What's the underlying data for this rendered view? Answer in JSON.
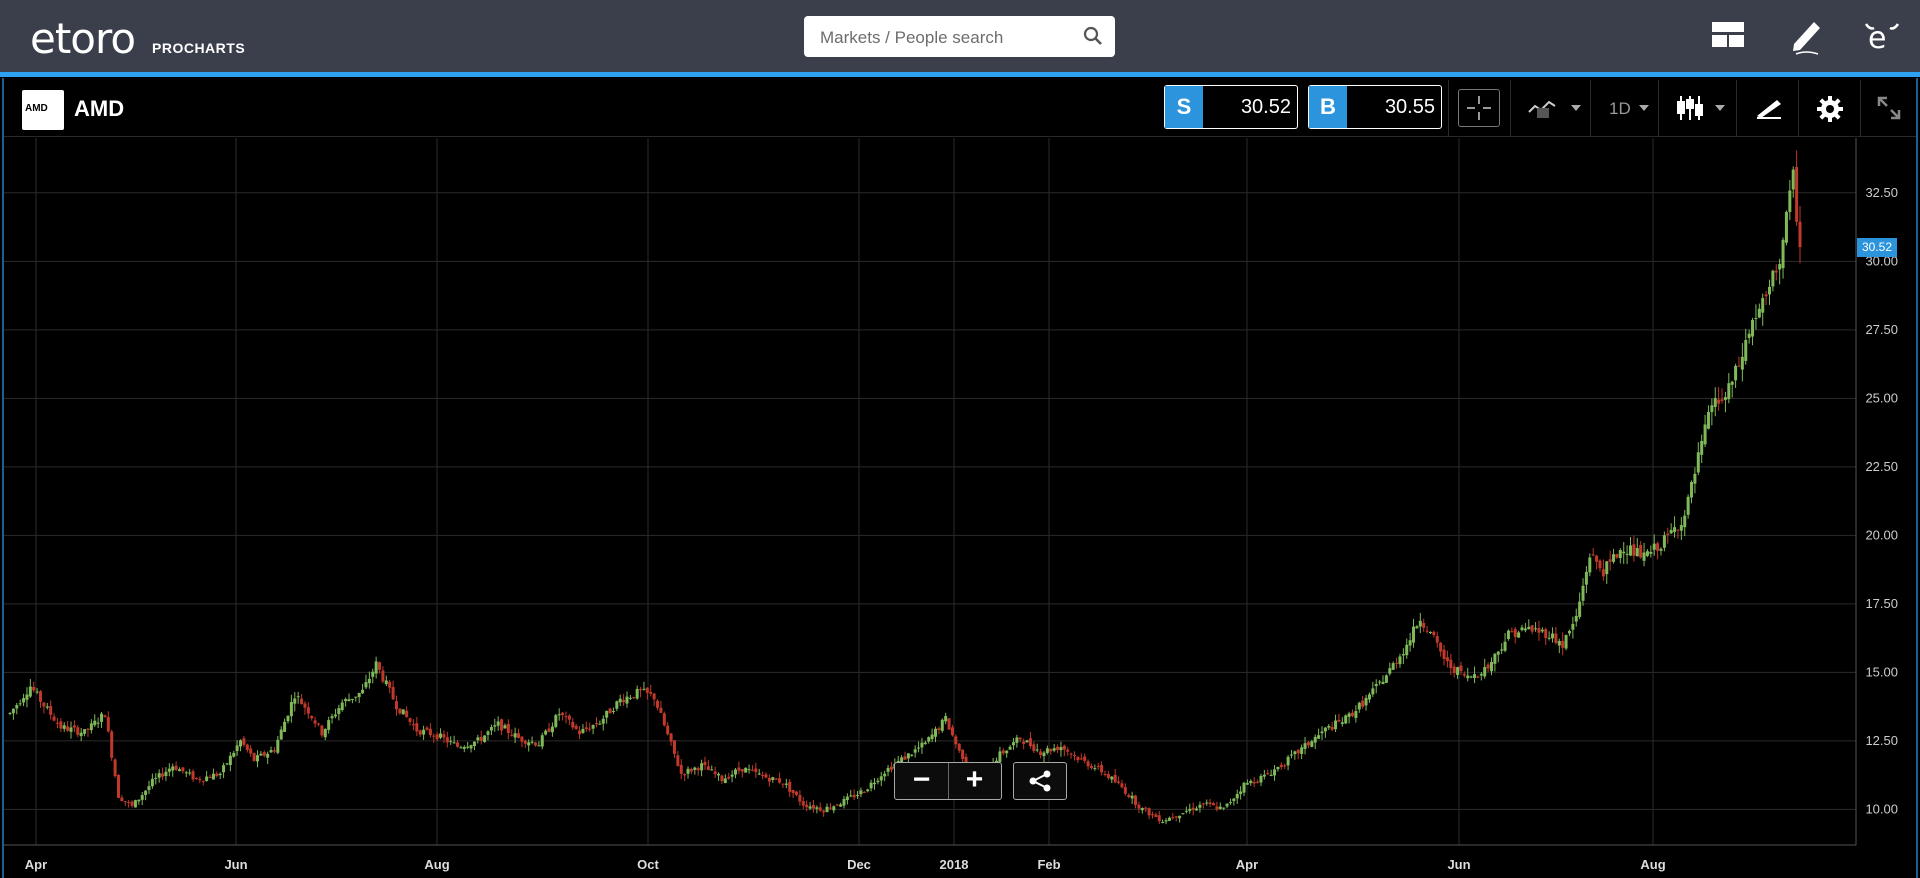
{
  "header": {
    "logo_text": "etoro",
    "logo_sub": "PROCHARTS",
    "search_placeholder": "Markets / People search",
    "icons": [
      "layout-icon",
      "edit-icon",
      "etoro-icon"
    ]
  },
  "instrument": {
    "logo_text": "AMD",
    "name": "AMD",
    "sell_tag": "S",
    "sell_price": "30.52",
    "buy_tag": "B",
    "buy_price": "30.55",
    "timeframe": "1D",
    "last_price_label": "30.52"
  },
  "toolbar": {
    "icons": [
      "crosshair-icon",
      "indicators-icon",
      "timeframe-dropdown",
      "candlestick-icon",
      "drawing-icon",
      "gear-icon",
      "fullscreen-icon"
    ]
  },
  "zoom": {
    "minus": "−",
    "plus": "+"
  },
  "colors": {
    "up": "#7fb95a",
    "down": "#c0392b",
    "accent": "#2b94dd",
    "topbar": "#3b3e4b"
  },
  "chart_data": {
    "type": "candlestick",
    "title": "",
    "y_ticks": [
      "32.50",
      "30.00",
      "27.50",
      "25.00",
      "22.50",
      "20.00",
      "17.50",
      "15.00",
      "12.50",
      "10.00"
    ],
    "x_ticks": [
      "Apr",
      "Jun",
      "Aug",
      "Oct",
      "Dec",
      "2018",
      "Feb",
      "Apr",
      "Jun",
      "Aug"
    ],
    "ylim": [
      8.7,
      34.5
    ],
    "last_price": 30.52,
    "grid": true,
    "approx_close_path": [
      [
        0,
        13.5
      ],
      [
        6,
        14.5
      ],
      [
        10,
        13.8
      ],
      [
        15,
        13.0
      ],
      [
        22,
        12.8
      ],
      [
        28,
        13.5
      ],
      [
        32,
        10.5
      ],
      [
        36,
        10.1
      ],
      [
        42,
        11.0
      ],
      [
        48,
        11.6
      ],
      [
        55,
        11.1
      ],
      [
        62,
        11.3
      ],
      [
        68,
        12.5
      ],
      [
        72,
        11.8
      ],
      [
        78,
        12.2
      ],
      [
        84,
        14.2
      ],
      [
        88,
        13.6
      ],
      [
        92,
        12.8
      ],
      [
        98,
        13.9
      ],
      [
        104,
        14.3
      ],
      [
        108,
        15.3
      ],
      [
        114,
        13.8
      ],
      [
        120,
        12.9
      ],
      [
        126,
        12.7
      ],
      [
        132,
        12.3
      ],
      [
        138,
        12.5
      ],
      [
        144,
        13.1
      ],
      [
        150,
        12.6
      ],
      [
        156,
        12.4
      ],
      [
        162,
        13.5
      ],
      [
        168,
        12.8
      ],
      [
        174,
        13.2
      ],
      [
        180,
        14.0
      ],
      [
        186,
        14.3
      ],
      [
        190,
        14.1
      ],
      [
        194,
        12.7
      ],
      [
        198,
        11.3
      ],
      [
        204,
        11.6
      ],
      [
        210,
        11.1
      ],
      [
        216,
        11.5
      ],
      [
        222,
        11.2
      ],
      [
        228,
        11.0
      ],
      [
        234,
        10.2
      ],
      [
        240,
        10.0
      ],
      [
        246,
        10.3
      ],
      [
        252,
        10.7
      ],
      [
        258,
        11.4
      ],
      [
        264,
        11.9
      ],
      [
        270,
        12.4
      ],
      [
        276,
        13.3
      ],
      [
        280,
        12.1
      ],
      [
        286,
        11.2
      ],
      [
        292,
        12.0
      ],
      [
        298,
        12.6
      ],
      [
        304,
        12.1
      ],
      [
        310,
        12.3
      ],
      [
        316,
        11.8
      ],
      [
        322,
        11.4
      ],
      [
        328,
        10.8
      ],
      [
        334,
        10.0
      ],
      [
        340,
        9.6
      ],
      [
        346,
        9.9
      ],
      [
        352,
        10.2
      ],
      [
        358,
        10.0
      ],
      [
        364,
        10.9
      ],
      [
        370,
        11.2
      ],
      [
        376,
        11.7
      ],
      [
        382,
        12.3
      ],
      [
        388,
        12.9
      ],
      [
        394,
        13.3
      ],
      [
        400,
        14.0
      ],
      [
        406,
        14.9
      ],
      [
        412,
        16.0
      ],
      [
        416,
        17.0
      ],
      [
        420,
        16.2
      ],
      [
        424,
        15.3
      ],
      [
        430,
        14.8
      ],
      [
        436,
        15.2
      ],
      [
        442,
        16.4
      ],
      [
        448,
        16.6
      ],
      [
        454,
        16.4
      ],
      [
        458,
        16.0
      ],
      [
        462,
        17.0
      ],
      [
        466,
        19.3
      ],
      [
        470,
        18.7
      ],
      [
        476,
        19.6
      ],
      [
        482,
        19.2
      ],
      [
        488,
        19.8
      ],
      [
        494,
        20.7
      ],
      [
        498,
        22.8
      ],
      [
        502,
        24.8
      ],
      [
        506,
        25.0
      ],
      [
        510,
        26.2
      ],
      [
        514,
        27.8
      ],
      [
        518,
        28.6
      ],
      [
        522,
        30.1
      ],
      [
        526,
        33.0
      ],
      [
        528,
        30.5
      ]
    ]
  }
}
